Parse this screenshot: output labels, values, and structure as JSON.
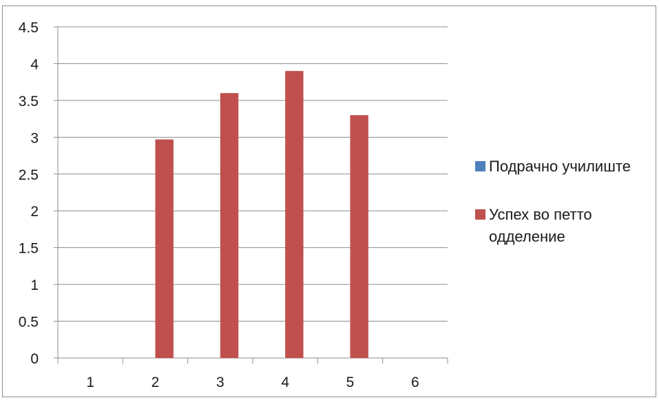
{
  "chart_data": {
    "type": "bar",
    "categories": [
      "1",
      "2",
      "3",
      "4",
      "5",
      "6"
    ],
    "series": [
      {
        "name": "Подрачно училиште",
        "values": [
          0,
          0,
          0,
          0,
          0,
          0
        ],
        "color": "#4f81bd"
      },
      {
        "name": "Успех во петто одделение",
        "values": [
          0,
          2.97,
          3.6,
          3.9,
          3.3,
          0
        ],
        "color": "#c0504d"
      }
    ],
    "ylim": [
      0,
      4.5
    ],
    "yticks": [
      "0",
      "0.5",
      "1",
      "1.5",
      "2",
      "2.5",
      "3",
      "3.5",
      "4",
      "4.5"
    ],
    "grid": true,
    "legend_position": "right"
  }
}
